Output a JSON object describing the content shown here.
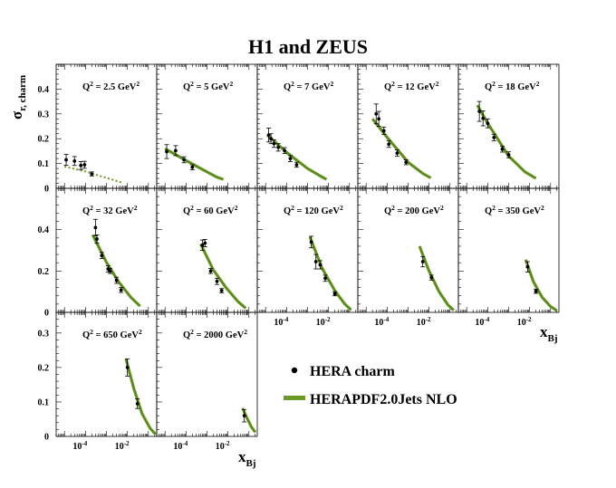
{
  "chart_data": {
    "type": "scatter",
    "title": "H1 and ZEUS",
    "ylabel_main": "σ",
    "ylabel_sub": "r, charm",
    "xlabel_main": "x",
    "xlabel_sub": "Bj",
    "xscale": "log",
    "xlim": [
      4e-06,
      0.25
    ],
    "xtick_labels": [
      {
        "value": 0.0001,
        "base": "10",
        "exp": "-4"
      },
      {
        "value": 0.01,
        "base": "10",
        "exp": "-2"
      }
    ],
    "legend": {
      "placement": "bottom-right",
      "entries": [
        {
          "label": "HERA charm",
          "marker": "point",
          "color": "#000000"
        },
        {
          "label": "HERAPDF2.0Jets NLO",
          "marker": "band",
          "color": "#6a9a25"
        }
      ]
    },
    "colors": {
      "fit": "#6a9a25",
      "fit_dark": "#4f7a16",
      "data": "#000000"
    },
    "rows": [
      {
        "ylim": [
          0,
          0.5
        ],
        "yticks": [
          0,
          0.1,
          0.2,
          0.3,
          0.4
        ],
        "ytick_labels": [
          "0",
          "0.1",
          "0.2",
          "0.3",
          "0.4"
        ]
      },
      {
        "ylim": [
          0,
          0.6
        ],
        "yticks": [
          0,
          0.2,
          0.4
        ],
        "ytick_labels": [
          "0",
          "0.2",
          "0.4"
        ]
      },
      {
        "ylim": [
          0,
          0.36
        ],
        "yticks": [
          0,
          0.1,
          0.2,
          0.3
        ],
        "ytick_labels": [
          "0",
          "0.1",
          "0.2",
          "0.3"
        ]
      }
    ],
    "panels": [
      {
        "q2_label": "Q",
        "q2_exp": "2",
        "q2_value": "= 2.5 GeV",
        "unit_exp": "2",
        "row": 0,
        "col": 0,
        "dotted": true,
        "points": [
          {
            "x": 1.2e-05,
            "y": 0.115,
            "err": 0.022
          },
          {
            "x": 3e-05,
            "y": 0.11,
            "err": 0.018
          },
          {
            "x": 6e-05,
            "y": 0.092,
            "err": 0.016
          },
          {
            "x": 9e-05,
            "y": 0.095,
            "err": 0.014
          },
          {
            "x": 0.0002,
            "y": 0.058,
            "err": 0.008
          }
        ],
        "curve": [
          [
            1e-05,
            0.088
          ],
          [
            0.0001,
            0.068
          ],
          [
            0.001,
            0.042
          ],
          [
            0.003,
            0.03
          ],
          [
            0.006,
            0.022
          ]
        ]
      },
      {
        "q2_label": "Q",
        "q2_exp": "2",
        "q2_value": "= 5 GeV",
        "unit_exp": "2",
        "row": 0,
        "col": 1,
        "points": [
          {
            "x": 1.2e-05,
            "y": 0.148,
            "err": 0.028
          },
          {
            "x": 3.2e-05,
            "y": 0.152,
            "err": 0.02
          },
          {
            "x": 8e-05,
            "y": 0.115,
            "err": 0.012
          },
          {
            "x": 0.0002,
            "y": 0.085,
            "err": 0.01
          }
        ],
        "curve": [
          [
            1e-05,
            0.16
          ],
          [
            0.0001,
            0.112
          ],
          [
            0.001,
            0.066
          ],
          [
            0.003,
            0.045
          ],
          [
            0.006,
            0.036
          ]
        ]
      },
      {
        "q2_label": "Q",
        "q2_exp": "2",
        "q2_value": "= 7 GeV",
        "unit_exp": "2",
        "row": 0,
        "col": 2,
        "points": [
          {
            "x": 1.4e-05,
            "y": 0.215,
            "err": 0.028
          },
          {
            "x": 1.8e-05,
            "y": 0.2,
            "err": 0.02
          },
          {
            "x": 2.5e-05,
            "y": 0.18,
            "err": 0.015
          },
          {
            "x": 4e-05,
            "y": 0.165,
            "err": 0.015
          },
          {
            "x": 8e-05,
            "y": 0.152,
            "err": 0.012
          },
          {
            "x": 0.00015,
            "y": 0.12,
            "err": 0.012
          },
          {
            "x": 0.0003,
            "y": 0.095,
            "err": 0.01
          }
        ],
        "curve": [
          [
            1.2e-05,
            0.215
          ],
          [
            0.0001,
            0.145
          ],
          [
            0.001,
            0.08
          ],
          [
            0.004,
            0.05
          ],
          [
            0.008,
            0.036
          ]
        ]
      },
      {
        "q2_label": "Q",
        "q2_exp": "2",
        "q2_value": "= 12 GeV",
        "unit_exp": "2",
        "row": 0,
        "col": 3,
        "points": [
          {
            "x": 3e-05,
            "y": 0.3,
            "err": 0.04
          },
          {
            "x": 4e-05,
            "y": 0.28,
            "err": 0.03
          },
          {
            "x": 7e-05,
            "y": 0.232,
            "err": 0.015
          },
          {
            "x": 0.00012,
            "y": 0.178,
            "err": 0.013
          },
          {
            "x": 0.0003,
            "y": 0.142,
            "err": 0.013
          },
          {
            "x": 0.0008,
            "y": 0.105,
            "err": 0.01
          }
        ],
        "curve": [
          [
            2e-05,
            0.28
          ],
          [
            0.0001,
            0.205
          ],
          [
            0.001,
            0.105
          ],
          [
            0.005,
            0.06
          ],
          [
            0.012,
            0.042
          ]
        ]
      },
      {
        "q2_label": "Q",
        "q2_exp": "2",
        "q2_value": "= 18 GeV",
        "unit_exp": "2",
        "row": 0,
        "col": 4,
        "points": [
          {
            "x": 4e-05,
            "y": 0.31,
            "err": 0.04
          },
          {
            "x": 6e-05,
            "y": 0.282,
            "err": 0.03
          },
          {
            "x": 0.0001,
            "y": 0.262,
            "err": 0.018
          },
          {
            "x": 0.0002,
            "y": 0.205,
            "err": 0.013
          },
          {
            "x": 0.0005,
            "y": 0.158,
            "err": 0.012
          },
          {
            "x": 0.001,
            "y": 0.135,
            "err": 0.012
          }
        ],
        "curve": [
          [
            3.2e-05,
            0.335
          ],
          [
            0.0001,
            0.262
          ],
          [
            0.001,
            0.13
          ],
          [
            0.006,
            0.066
          ],
          [
            0.02,
            0.04
          ]
        ]
      },
      {
        "q2_label": "Q",
        "q2_exp": "2",
        "q2_value": "= 32 GeV",
        "unit_exp": "2",
        "row": 1,
        "col": 0,
        "points": [
          {
            "x": 0.0003,
            "y": 0.41,
            "err": 0.04
          },
          {
            "x": 0.00035,
            "y": 0.355,
            "err": 0.02
          },
          {
            "x": 0.0006,
            "y": 0.275,
            "err": 0.015
          },
          {
            "x": 0.0012,
            "y": 0.21,
            "err": 0.015
          },
          {
            "x": 0.0015,
            "y": 0.2,
            "err": 0.012
          },
          {
            "x": 0.003,
            "y": 0.155,
            "err": 0.015
          },
          {
            "x": 0.005,
            "y": 0.108,
            "err": 0.012
          }
        ],
        "curve": [
          [
            0.00022,
            0.375
          ],
          [
            0.001,
            0.242
          ],
          [
            0.004,
            0.145
          ],
          [
            0.015,
            0.072
          ],
          [
            0.04,
            0.03
          ]
        ]
      },
      {
        "q2_label": "Q",
        "q2_exp": "2",
        "q2_value": "= 60 GeV",
        "unit_exp": "2",
        "row": 1,
        "col": 1,
        "points": [
          {
            "x": 0.0006,
            "y": 0.325,
            "err": 0.025
          },
          {
            "x": 0.0008,
            "y": 0.335,
            "err": 0.018
          },
          {
            "x": 0.0015,
            "y": 0.2,
            "err": 0.012
          },
          {
            "x": 0.003,
            "y": 0.15,
            "err": 0.015
          },
          {
            "x": 0.005,
            "y": 0.105,
            "err": 0.01
          }
        ],
        "curve": [
          [
            0.0005,
            0.33
          ],
          [
            0.002,
            0.205
          ],
          [
            0.008,
            0.12
          ],
          [
            0.03,
            0.052
          ],
          [
            0.07,
            0.02
          ]
        ]
      },
      {
        "q2_label": "Q",
        "q2_exp": "2",
        "q2_value": "= 120 GeV",
        "unit_exp": "2",
        "row": 1,
        "col": 2,
        "points": [
          {
            "x": 0.0015,
            "y": 0.34,
            "err": 0.028
          },
          {
            "x": 0.0025,
            "y": 0.245,
            "err": 0.035
          },
          {
            "x": 0.004,
            "y": 0.23,
            "err": 0.02
          },
          {
            "x": 0.007,
            "y": 0.165,
            "err": 0.015
          },
          {
            "x": 0.02,
            "y": 0.09,
            "err": 0.01
          }
        ],
        "curve": [
          [
            0.0013,
            0.365
          ],
          [
            0.005,
            0.212
          ],
          [
            0.02,
            0.105
          ],
          [
            0.06,
            0.04
          ],
          [
            0.12,
            0.012
          ]
        ]
      },
      {
        "q2_label": "Q",
        "q2_exp": "2",
        "q2_value": "= 200 GeV",
        "unit_exp": "2",
        "row": 1,
        "col": 3,
        "points": [
          {
            "x": 0.005,
            "y": 0.245,
            "err": 0.025
          },
          {
            "x": 0.013,
            "y": 0.168,
            "err": 0.012
          }
        ],
        "curve": [
          [
            0.0035,
            0.32
          ],
          [
            0.01,
            0.2
          ],
          [
            0.03,
            0.1
          ],
          [
            0.08,
            0.036
          ],
          [
            0.15,
            0.01
          ]
        ]
      },
      {
        "q2_label": "Q",
        "q2_exp": "2",
        "q2_value": "= 350 GeV",
        "unit_exp": "2",
        "row": 1,
        "col": 4,
        "points": [
          {
            "x": 0.008,
            "y": 0.22,
            "err": 0.025
          },
          {
            "x": 0.02,
            "y": 0.102,
            "err": 0.01
          }
        ],
        "curve": [
          [
            0.0065,
            0.255
          ],
          [
            0.015,
            0.15
          ],
          [
            0.04,
            0.072
          ],
          [
            0.1,
            0.028
          ],
          [
            0.2,
            0.008
          ]
        ]
      },
      {
        "q2_label": "Q",
        "q2_exp": "2",
        "q2_value": "= 650 GeV",
        "unit_exp": "2",
        "row": 2,
        "col": 0,
        "points": [
          {
            "x": 0.01,
            "y": 0.2,
            "err": 0.025
          },
          {
            "x": 0.03,
            "y": 0.095,
            "err": 0.014
          }
        ],
        "curve": [
          [
            0.0085,
            0.225
          ],
          [
            0.02,
            0.14
          ],
          [
            0.05,
            0.066
          ],
          [
            0.12,
            0.024
          ],
          [
            0.22,
            0.006
          ]
        ]
      },
      {
        "q2_label": "Q",
        "q2_exp": "2",
        "q2_value": "= 2000 GeV",
        "unit_exp": "2",
        "row": 2,
        "col": 1,
        "points": [
          {
            "x": 0.06,
            "y": 0.06,
            "err": 0.018
          }
        ],
        "curve": [
          [
            0.05,
            0.082
          ],
          [
            0.08,
            0.054
          ],
          [
            0.13,
            0.028
          ],
          [
            0.2,
            0.012
          ]
        ]
      }
    ]
  }
}
